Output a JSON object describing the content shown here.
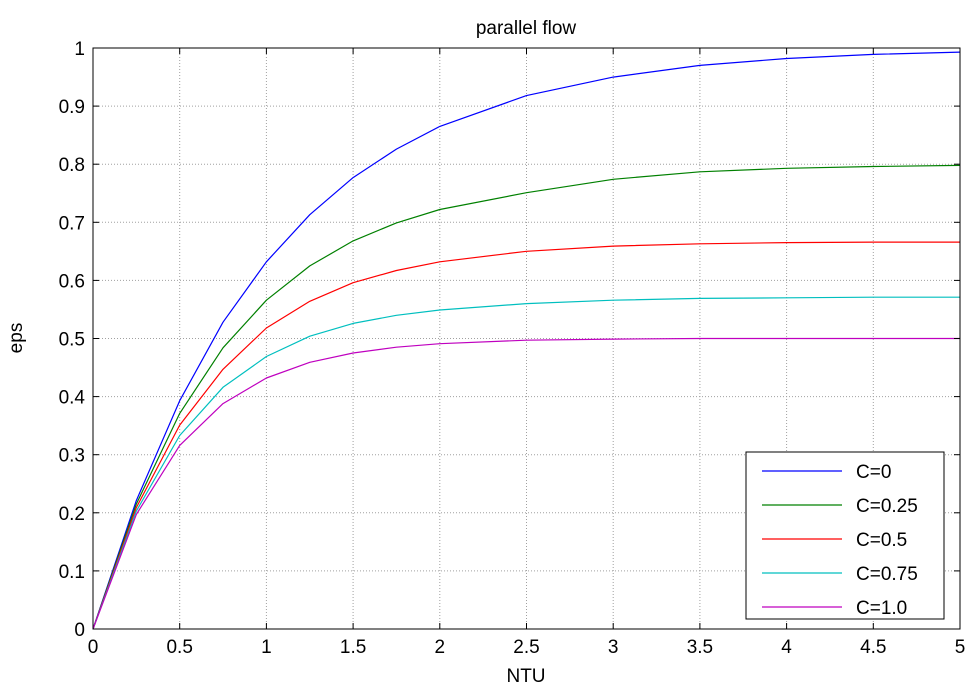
{
  "chart_data": {
    "type": "line",
    "title": "parallel flow",
    "xlabel": "NTU",
    "ylabel": "eps",
    "xlim": [
      0,
      5
    ],
    "ylim": [
      0,
      1
    ],
    "xticks": [
      0,
      0.5,
      1,
      1.5,
      2,
      2.5,
      3,
      3.5,
      4,
      4.5,
      5
    ],
    "yticks": [
      0,
      0.1,
      0.2,
      0.3,
      0.4,
      0.5,
      0.6,
      0.7,
      0.8,
      0.9,
      1
    ],
    "xtick_labels": [
      "0",
      "0.5",
      "1",
      "1.5",
      "2",
      "2.5",
      "3",
      "3.5",
      "4",
      "4.5",
      "5"
    ],
    "ytick_labels": [
      "0",
      "0.1",
      "0.2",
      "0.3",
      "0.4",
      "0.5",
      "0.6",
      "0.7",
      "0.8",
      "0.9",
      "1"
    ],
    "grid": true,
    "legend_position": "bottom-right",
    "x": [
      0,
      0.25,
      0.5,
      0.75,
      1,
      1.25,
      1.5,
      1.75,
      2,
      2.5,
      3,
      3.5,
      4,
      4.5,
      5
    ],
    "series": [
      {
        "name": "C=0",
        "color": "#0000ff",
        "values": [
          0,
          0.221,
          0.393,
          0.528,
          0.632,
          0.713,
          0.777,
          0.826,
          0.865,
          0.918,
          0.95,
          0.97,
          0.982,
          0.989,
          0.993
        ]
      },
      {
        "name": "C=0.25",
        "color": "#008000",
        "values": [
          0,
          0.215,
          0.371,
          0.484,
          0.566,
          0.625,
          0.668,
          0.699,
          0.722,
          0.751,
          0.774,
          0.787,
          0.793,
          0.796,
          0.798
        ]
      },
      {
        "name": "C=0.5",
        "color": "#ff0000",
        "values": [
          0,
          0.209,
          0.351,
          0.447,
          0.518,
          0.564,
          0.596,
          0.617,
          0.632,
          0.65,
          0.659,
          0.663,
          0.665,
          0.666,
          0.666
        ]
      },
      {
        "name": "C=0.75",
        "color": "#00bfbf",
        "values": [
          0,
          0.203,
          0.333,
          0.416,
          0.469,
          0.504,
          0.526,
          0.54,
          0.549,
          0.56,
          0.566,
          0.569,
          0.57,
          0.571,
          0.571
        ]
      },
      {
        "name": "C=1.0",
        "color": "#bf00bf",
        "values": [
          0,
          0.197,
          0.316,
          0.388,
          0.432,
          0.459,
          0.475,
          0.485,
          0.491,
          0.497,
          0.499,
          0.5,
          0.5,
          0.5,
          0.5
        ]
      }
    ]
  }
}
